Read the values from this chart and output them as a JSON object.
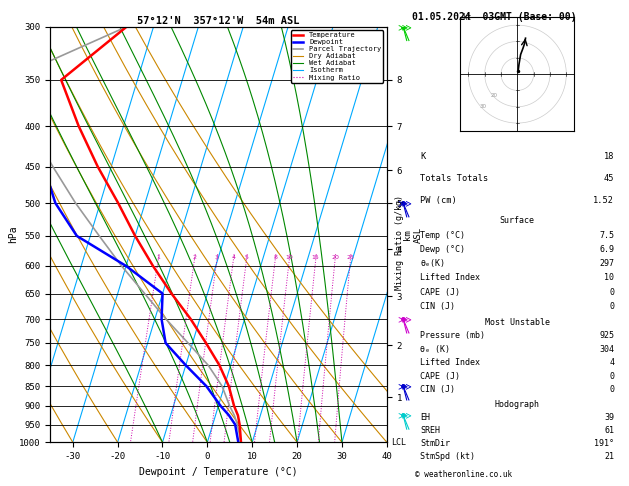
{
  "title_left": "57°12'N  357°12'W  54m ASL",
  "title_right": "01.05.2024  03GMT (Base: 00)",
  "xlabel": "Dewpoint / Temperature (°C)",
  "ylabel_left": "hPa",
  "pressure_ticks": [
    300,
    350,
    400,
    450,
    500,
    550,
    600,
    650,
    700,
    750,
    800,
    850,
    900,
    950,
    1000
  ],
  "temp_xlim": [
    -35,
    40
  ],
  "temp_xticks": [
    -30,
    -20,
    -10,
    0,
    10,
    20,
    30,
    40
  ],
  "skew_factor": 28,
  "temp_profile": {
    "pressure": [
      1000,
      950,
      925,
      900,
      850,
      800,
      750,
      700,
      650,
      600,
      550,
      500,
      450,
      400,
      350,
      300
    ],
    "temp": [
      7.5,
      6.0,
      5.0,
      3.5,
      1.0,
      -2.5,
      -7.0,
      -12.0,
      -18.0,
      -24.0,
      -30.0,
      -36.0,
      -43.0,
      -50.0,
      -57.0,
      -46.0
    ]
  },
  "dewpoint_profile": {
    "pressure": [
      1000,
      950,
      925,
      900,
      850,
      800,
      750,
      700,
      650,
      600,
      550,
      500,
      450,
      400,
      350,
      300
    ],
    "temp": [
      6.9,
      5.0,
      3.0,
      0.5,
      -4.0,
      -10.0,
      -16.0,
      -18.5,
      -20.0,
      -30.0,
      -43.0,
      -50.0,
      -55.0,
      -62.0,
      -69.0,
      -80.0
    ]
  },
  "parcel_profile": {
    "pressure": [
      1000,
      950,
      925,
      900,
      850,
      800,
      750,
      700,
      650,
      600,
      550,
      500,
      450,
      400,
      350,
      300
    ],
    "temp": [
      7.5,
      5.5,
      4.2,
      2.5,
      -0.5,
      -5.0,
      -11.0,
      -17.5,
      -24.0,
      -31.0,
      -38.0,
      -45.5,
      -53.0,
      -61.0,
      -69.0,
      -46.0
    ]
  },
  "dry_adiabat_t0s": [
    -40,
    -30,
    -20,
    -10,
    0,
    10,
    20,
    30,
    40,
    50
  ],
  "dry_adiabat_color": "#cc8800",
  "dry_adiabat_lw": 0.8,
  "wet_adiabat_t0s": [
    -10,
    0,
    5,
    10,
    15,
    20,
    25,
    30
  ],
  "wet_adiabat_color": "#008800",
  "wet_adiabat_lw": 0.8,
  "isotherm_temps": [
    -40,
    -30,
    -20,
    -10,
    0,
    10,
    20,
    30,
    40
  ],
  "isotherm_color": "#00aaff",
  "isotherm_lw": 0.8,
  "mixing_ratio_values": [
    1,
    2,
    3,
    4,
    5,
    8,
    10,
    15,
    20,
    25
  ],
  "mixing_ratio_color": "#cc00aa",
  "mixing_ratio_lw": 0.7,
  "right_km_labels": [
    "8",
    "7",
    "6",
    "5",
    "4",
    "3",
    "2",
    "1"
  ],
  "right_km_pressures": [
    350,
    400,
    455,
    500,
    572,
    655,
    755,
    878
  ],
  "wind_barbs": {
    "pressures": [
      300,
      500,
      700,
      850,
      925
    ],
    "colors": [
      "#00cc00",
      "#0000cc",
      "#cc00cc",
      "#0000cc",
      "#00cccc"
    ],
    "barb_sizes": [
      3,
      2,
      2,
      2,
      1
    ]
  },
  "lcl_pressure": 1000,
  "table_data": {
    "K": 18,
    "Totals_Totals": 45,
    "PW_cm": 1.52,
    "Surface_Temp_C": 7.5,
    "Surface_Dewp_C": 6.9,
    "Surface_theta_e_K": 297,
    "Surface_Lifted_Index": 10,
    "Surface_CAPE_J": 0,
    "Surface_CIN_J": 0,
    "MU_Pressure_mb": 925,
    "MU_theta_e_K": 304,
    "MU_Lifted_Index": 4,
    "MU_CAPE_J": 0,
    "MU_CIN_J": 0,
    "Hodo_EH": 39,
    "Hodo_SREH": 61,
    "Hodo_StmDir": 191,
    "Hodo_StmSpd_kt": 21
  },
  "legend_items": [
    {
      "label": "Temperature",
      "color": "#ff0000",
      "lw": 1.8,
      "ls": "-"
    },
    {
      "label": "Dewpoint",
      "color": "#0000ff",
      "lw": 1.8,
      "ls": "-"
    },
    {
      "label": "Parcel Trajectory",
      "color": "#999999",
      "lw": 1.2,
      "ls": "-"
    },
    {
      "label": "Dry Adiabat",
      "color": "#cc8800",
      "lw": 0.8,
      "ls": "-"
    },
    {
      "label": "Wet Adiabat",
      "color": "#008800",
      "lw": 0.8,
      "ls": "-"
    },
    {
      "label": "Isotherm",
      "color": "#00aaff",
      "lw": 0.8,
      "ls": "-"
    },
    {
      "label": "Mixing Ratio",
      "color": "#cc00aa",
      "lw": 0.8,
      "ls": ":"
    }
  ],
  "bg_color": "#ffffff"
}
